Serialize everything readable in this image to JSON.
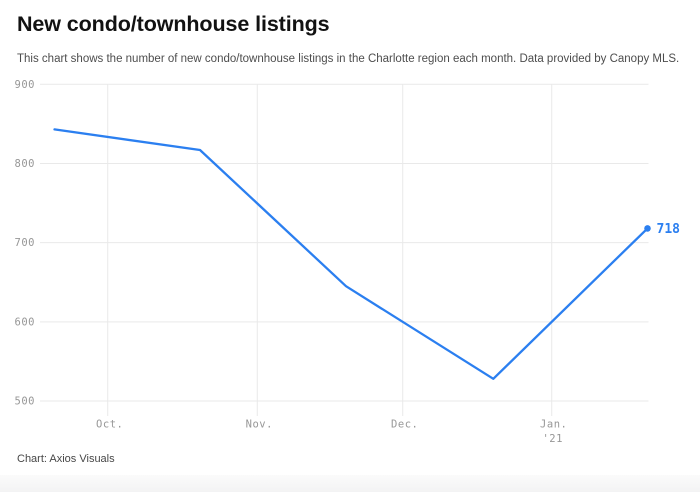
{
  "chart_data": {
    "type": "line",
    "title": "New condo/townhouse listings",
    "subtitle": "This chart shows the number of new condo/townhouse listings in the Charlotte region each month. Data provided by Canopy MLS.",
    "series": [
      {
        "name": "New condo/townhouse listings",
        "values": [
          843,
          817,
          645,
          528,
          718
        ]
      }
    ],
    "x_tick_labels": [
      "Oct.",
      "Nov.",
      "Dec.",
      "Jan."
    ],
    "x_year_sublabel": "'21",
    "x_year_sublabel_under": "Jan.",
    "y_ticks": [
      900,
      800,
      700,
      600,
      500
    ],
    "ylim": [
      500,
      900
    ],
    "end_point_label": "718",
    "grid": "on",
    "legend_position": "none",
    "colors": {
      "line": "#2b7ff0",
      "end_label": "#2b7ff0",
      "grid_line": "#e9e9e9",
      "axis_text": "#979797"
    }
  },
  "footer": {
    "credit": "Chart: Axios Visuals"
  }
}
